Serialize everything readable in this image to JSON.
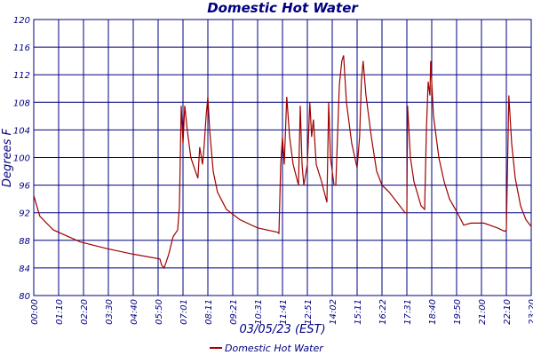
{
  "chart_data": {
    "type": "line",
    "title": "Domestic Hot Water",
    "x_label": "03/05/23 (EST)",
    "y_label": "Degrees F",
    "xlim": [
      0,
      1400
    ],
    "xticks": [
      {
        "value": 0,
        "label": "00:00"
      },
      {
        "value": 70,
        "label": "01:10"
      },
      {
        "value": 140,
        "label": "02:20"
      },
      {
        "value": 210,
        "label": "03:30"
      },
      {
        "value": 280,
        "label": "04:40"
      },
      {
        "value": 350,
        "label": "05:50"
      },
      {
        "value": 420,
        "label": "07:01"
      },
      {
        "value": 490,
        "label": "08:11"
      },
      {
        "value": 560,
        "label": "09:21"
      },
      {
        "value": 630,
        "label": "10:31"
      },
      {
        "value": 700,
        "label": "11:41"
      },
      {
        "value": 770,
        "label": "12:51"
      },
      {
        "value": 840,
        "label": "14:02"
      },
      {
        "value": 910,
        "label": "15:11"
      },
      {
        "value": 980,
        "label": "16:22"
      },
      {
        "value": 1050,
        "label": "17:31"
      },
      {
        "value": 1120,
        "label": "18:40"
      },
      {
        "value": 1190,
        "label": "19:50"
      },
      {
        "value": 1260,
        "label": "21:00"
      },
      {
        "value": 1330,
        "label": "22:10"
      },
      {
        "value": 1400,
        "label": "23:20"
      }
    ],
    "ylim": [
      80,
      120
    ],
    "yticks": [
      80,
      84,
      88,
      92,
      96,
      100,
      104,
      108,
      112,
      116,
      120
    ],
    "grid": true,
    "legend": "bottom",
    "x": [
      0,
      17,
      55,
      130,
      205,
      280,
      355,
      360,
      367,
      380,
      392,
      405,
      410,
      415,
      420,
      425,
      432,
      442,
      455,
      462,
      467,
      475,
      480,
      485,
      490,
      495,
      505,
      517,
      542,
      580,
      630,
      685,
      690,
      695,
      700,
      705,
      712,
      720,
      730,
      745,
      750,
      755,
      760,
      770,
      777,
      782,
      787,
      795,
      810,
      825,
      830,
      835,
      845,
      850,
      860,
      867,
      872,
      880,
      895,
      910,
      917,
      922,
      927,
      935,
      950,
      965,
      980,
      1000,
      1030,
      1045,
      1050,
      1052,
      1060,
      1070,
      1090,
      1100,
      1105,
      1110,
      1115,
      1117,
      1125,
      1140,
      1155,
      1170,
      1192,
      1210,
      1230,
      1267,
      1305,
      1325,
      1330,
      1337,
      1345,
      1355,
      1370,
      1385,
      1400
    ],
    "series": [
      {
        "name": "Domestic Hot Water",
        "color": "#a00000",
        "values": [
          94.5,
          91.5,
          89.5,
          87.8,
          86.8,
          86,
          85.3,
          84.4,
          84,
          86,
          88.5,
          89.5,
          93,
          107.5,
          102,
          107.5,
          104,
          100,
          98,
          97,
          101.5,
          99,
          102,
          106,
          108.8,
          104,
          98,
          95,
          92.5,
          91,
          89.8,
          89.2,
          89,
          99,
          103,
          99,
          108.8,
          103,
          99,
          96,
          107.5,
          99,
          96,
          99,
          108,
          103,
          105.5,
          99,
          96.5,
          93.5,
          108,
          100,
          96,
          96,
          110.5,
          114,
          114.8,
          108,
          102,
          98.5,
          103,
          111,
          114,
          109,
          103,
          98,
          96,
          95,
          93,
          92,
          92,
          107.5,
          100,
          96.5,
          93,
          92.5,
          104,
          111,
          109,
          114,
          106,
          100,
          96.5,
          94,
          92,
          90.2,
          90.5,
          90.5,
          89.8,
          89.3,
          89.5,
          109,
          102,
          97,
          93,
          91,
          90
        ]
      }
    ]
  }
}
